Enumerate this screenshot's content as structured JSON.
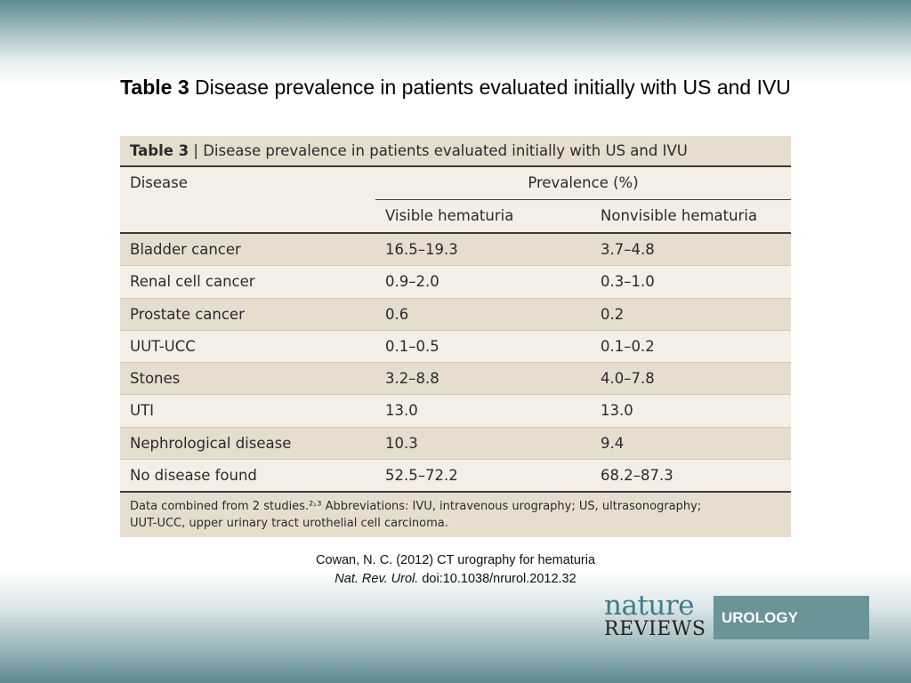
{
  "slide": {
    "title_bold": "Table 3",
    "title_rest": " Disease prevalence in patients evaluated initially with US and IVU"
  },
  "table": {
    "caption_bold": "Table 3",
    "caption_rest": " | Disease prevalence in patients evaluated initially with US and IVU",
    "header": {
      "disease": "Disease",
      "prevalence": "Prevalence (%)",
      "visible": "Visible hematuria",
      "nonvisible": "Nonvisible hematuria"
    },
    "rows": [
      {
        "disease": "Bladder cancer",
        "visible": "16.5–19.3",
        "nonvisible": "3.7–4.8"
      },
      {
        "disease": "Renal cell cancer",
        "visible": "0.9–2.0",
        "nonvisible": "0.3–1.0"
      },
      {
        "disease": "Prostate cancer",
        "visible": "0.6",
        "nonvisible": "0.2"
      },
      {
        "disease": "UUT-UCC",
        "visible": "0.1–0.5",
        "nonvisible": "0.1–0.2"
      },
      {
        "disease": "Stones",
        "visible": "3.2–8.8",
        "nonvisible": "4.0–7.8"
      },
      {
        "disease": "UTI",
        "visible": "13.0",
        "nonvisible": "13.0"
      },
      {
        "disease": "Nephrological disease",
        "visible": "10.3",
        "nonvisible": "9.4"
      },
      {
        "disease": "No disease found",
        "visible": "52.5–72.2",
        "nonvisible": "68.2–87.3"
      }
    ],
    "footnote_line1": "Data combined from 2 studies.²˒³ Abbreviations: IVU, intravenous urography; US, ultrasonography;",
    "footnote_line2": "UUT-UCC, upper urinary tract urothelial cell carcinoma."
  },
  "citation": {
    "line1": "Cowan, N. C. (2012) CT urography for hematuria",
    "journal": "Nat. Rev. Urol.",
    "doi": " doi:10.1038/nrurol.2012.32"
  },
  "logo": {
    "word1": "nature",
    "word2": "REVIEWS",
    "badge": "UROLOGY"
  }
}
